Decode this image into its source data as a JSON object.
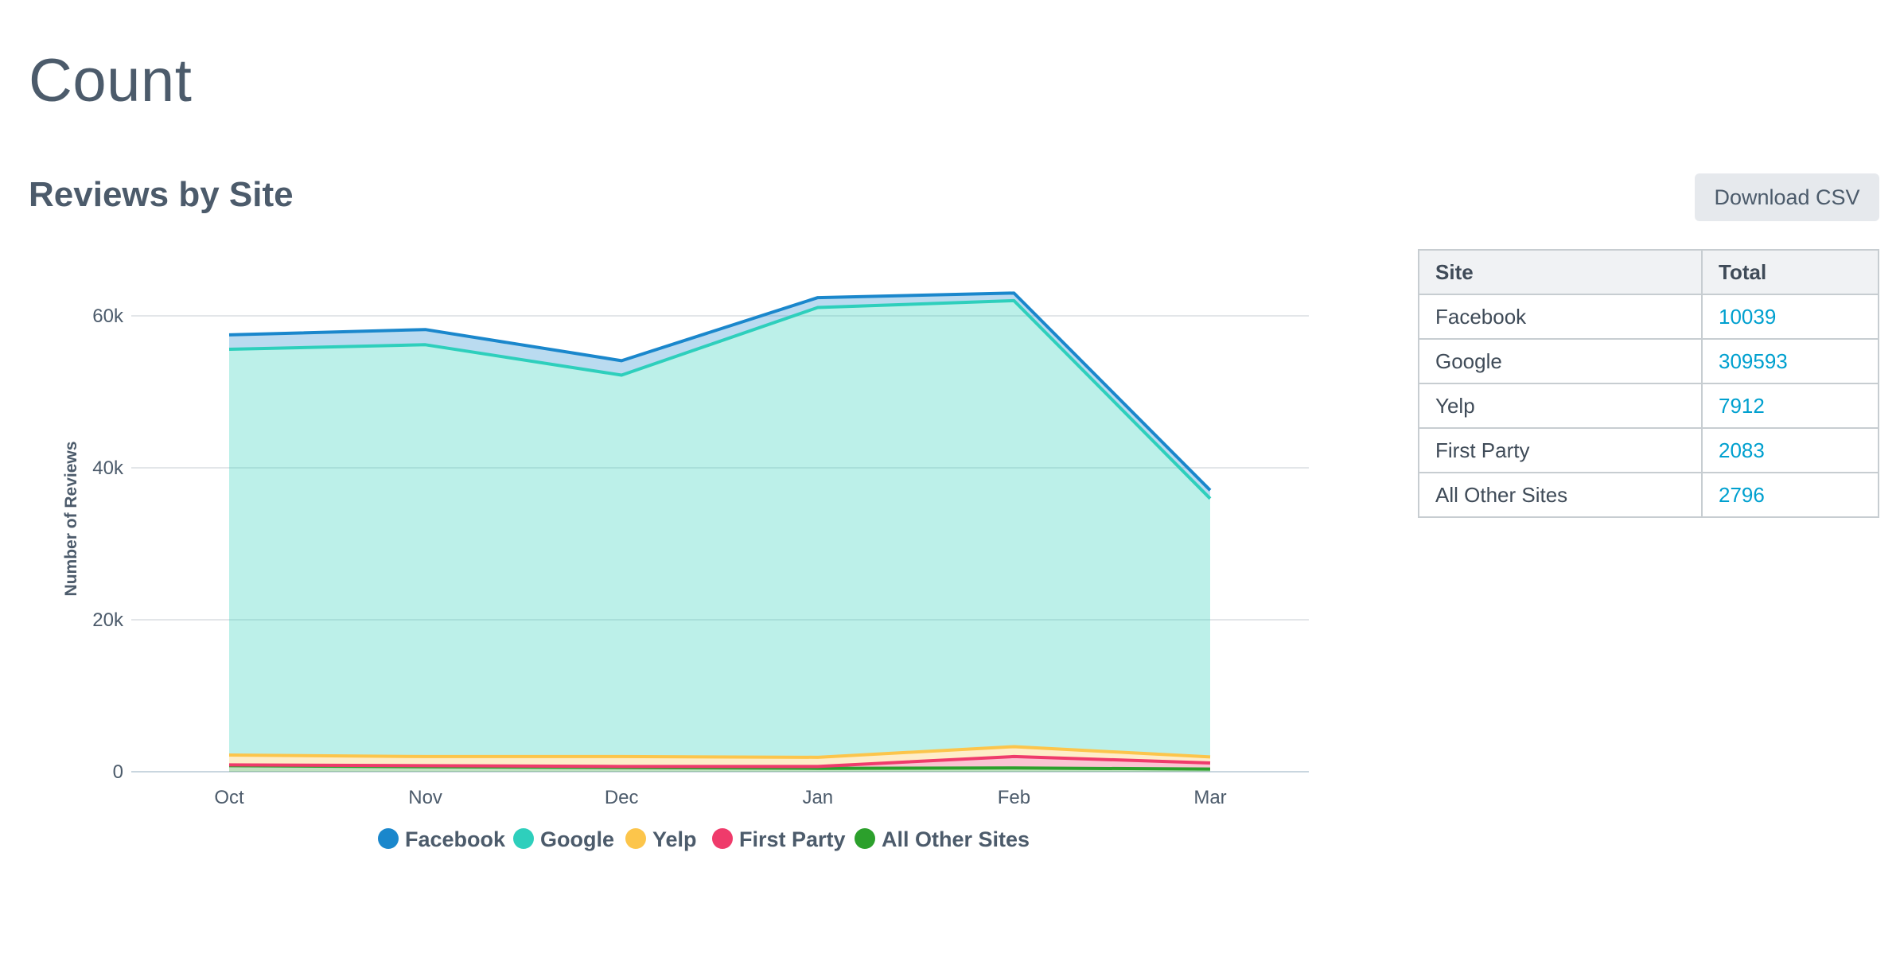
{
  "page_title": "Count",
  "section_title": "Reviews by Site",
  "download_label": "Download CSV",
  "table": {
    "headers": [
      "Site",
      "Total"
    ],
    "rows": [
      {
        "site": "Facebook",
        "total": "10039"
      },
      {
        "site": "Google",
        "total": "309593"
      },
      {
        "site": "Yelp",
        "total": "7912"
      },
      {
        "site": "First Party",
        "total": "2083"
      },
      {
        "site": "All Other Sites",
        "total": "2796"
      }
    ]
  },
  "chart_data": {
    "type": "area",
    "stacked": true,
    "categories": [
      "Oct",
      "Nov",
      "Dec",
      "Jan",
      "Feb",
      "Mar"
    ],
    "ylabel": "Number of Reviews",
    "ylim": [
      0,
      60000
    ],
    "yticks": [
      0,
      20000,
      40000,
      60000
    ],
    "ytick_labels": [
      "0",
      "20k",
      "40k",
      "60k"
    ],
    "grid": true,
    "legend_position": "bottom",
    "series": [
      {
        "name": "All Other Sites",
        "color": "#2ca02c",
        "values": [
          800,
          650,
          550,
          450,
          500,
          350
        ]
      },
      {
        "name": "First Party",
        "color": "#ef3b6b",
        "values": [
          100,
          150,
          150,
          250,
          1500,
          800
        ]
      },
      {
        "name": "Yelp",
        "color": "#fcc54b",
        "values": [
          1300,
          1200,
          1300,
          1200,
          1300,
          800
        ]
      },
      {
        "name": "Google",
        "color": "#2ecfbc",
        "values": [
          53400,
          54200,
          50200,
          59200,
          58700,
          34000
        ]
      },
      {
        "name": "Facebook",
        "color": "#1a87cc",
        "values": [
          1900,
          2000,
          1900,
          1300,
          1000,
          1100
        ]
      }
    ],
    "legend_order": [
      "Facebook",
      "Google",
      "Yelp",
      "First Party",
      "All Other Sites"
    ]
  }
}
